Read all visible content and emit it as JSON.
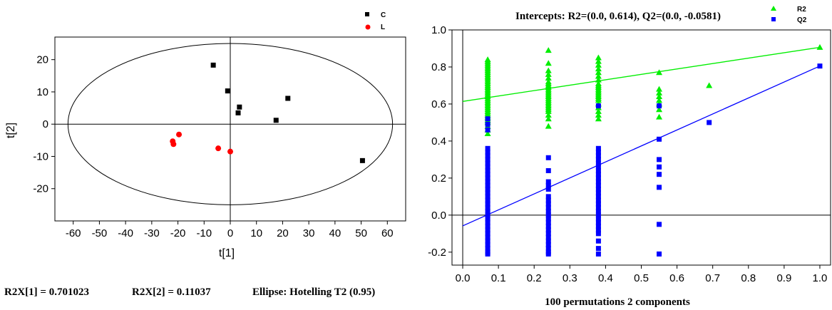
{
  "chart_data": [
    {
      "type": "scatter",
      "xlabel": "t[1]",
      "ylabel": "t[2]",
      "xlim": [
        -67,
        67
      ],
      "ylim": [
        -30,
        27
      ],
      "xticks": [
        -60,
        -50,
        -40,
        -30,
        -20,
        -10,
        0,
        10,
        20,
        30,
        40,
        50,
        60
      ],
      "yticks": [
        -20,
        -10,
        0,
        10,
        20
      ],
      "ellipse": {
        "rx": 62,
        "ry": 25
      },
      "series": [
        {
          "name": "C",
          "color": "#000000",
          "marker": "square",
          "points": [
            [
              -6.5,
              18.3
            ],
            [
              -1,
              10.3
            ],
            [
              3.5,
              5.3
            ],
            [
              3,
              3.5
            ],
            [
              17.5,
              1.2
            ],
            [
              22,
              8
            ],
            [
              50.5,
              -11.3
            ]
          ]
        },
        {
          "name": "L",
          "color": "#ff0000",
          "marker": "circle",
          "points": [
            [
              -22,
              -5.3
            ],
            [
              -21.7,
              -6.2
            ],
            [
              -19.6,
              -3.2
            ],
            [
              -4.6,
              -7.5
            ],
            [
              0,
              -8.5
            ]
          ]
        }
      ],
      "footer": {
        "r2x1": "R2X[1] = 0.701023",
        "r2x2": "R2X[2] = 0.11037",
        "ellipse": "Ellipse: Hotelling T2 (0.95)"
      }
    },
    {
      "type": "scatter",
      "title": "Intercepts: R2=(0.0, 0.614), Q2=(0.0, -0.0581)",
      "xlabel": "100 permutations 2 components",
      "xlim": [
        -0.03,
        1.03
      ],
      "ylim": [
        -0.27,
        1.0
      ],
      "xticks": [
        "0.0",
        "0.1",
        "0.2",
        "0.3",
        "0.4",
        "0.5",
        "0.6",
        "0.7",
        "0.8",
        "0.9",
        "1.0"
      ],
      "yticks": [
        "-0.2",
        "0.0",
        "0.2",
        "0.4",
        "0.6",
        "0.8",
        "1.0"
      ],
      "series": [
        {
          "name": "R2",
          "color": "#00ee00",
          "marker": "triangle",
          "columns": [
            {
              "x": 0.07,
              "y": [
                0.84,
                0.83,
                0.82,
                0.81,
                0.8,
                0.79,
                0.78,
                0.77,
                0.76,
                0.75,
                0.74,
                0.73,
                0.72,
                0.71,
                0.7,
                0.69,
                0.68,
                0.67,
                0.66,
                0.65,
                0.64,
                0.63,
                0.62,
                0.61,
                0.6,
                0.59,
                0.58,
                0.57,
                0.56,
                0.55,
                0.54,
                0.53,
                0.52,
                0.51,
                0.5,
                0.48,
                0.46,
                0.44
              ]
            },
            {
              "x": 0.24,
              "y": [
                0.89,
                0.82,
                0.78,
                0.76,
                0.74,
                0.72,
                0.71,
                0.7,
                0.69,
                0.68,
                0.67,
                0.66,
                0.65,
                0.64,
                0.63,
                0.62,
                0.61,
                0.6,
                0.59,
                0.58,
                0.57,
                0.56,
                0.54,
                0.52,
                0.48
              ]
            },
            {
              "x": 0.38,
              "y": [
                0.85,
                0.83,
                0.81,
                0.79,
                0.77,
                0.75,
                0.73,
                0.71,
                0.7,
                0.69,
                0.68,
                0.67,
                0.66,
                0.65,
                0.64,
                0.63,
                0.62,
                0.6,
                0.58,
                0.56,
                0.54,
                0.52
              ]
            },
            {
              "x": 0.55,
              "y": [
                0.77,
                0.68,
                0.66,
                0.64,
                0.62,
                0.6,
                0.57,
                0.53
              ]
            },
            {
              "x": 0.69,
              "y": [
                0.7
              ]
            },
            {
              "x": 1.0,
              "y": [
                0.906
              ]
            }
          ],
          "regression": [
            [
              0,
              0.614
            ],
            [
              1.0,
              0.906
            ]
          ]
        },
        {
          "name": "Q2",
          "color": "#0000ff",
          "marker": "square",
          "columns": [
            {
              "x": 0.07,
              "y": [
                0.52,
                0.49,
                0.46,
                0.36,
                0.34,
                0.32,
                0.3,
                0.28,
                0.26,
                0.24,
                0.22,
                0.2,
                0.18,
                0.16,
                0.14,
                0.12,
                0.1,
                0.08,
                0.06,
                0.04,
                0.02,
                0.0,
                -0.02,
                -0.04,
                -0.06,
                -0.08,
                -0.1,
                -0.12,
                -0.14,
                -0.16,
                -0.18,
                -0.2,
                -0.21
              ]
            },
            {
              "x": 0.24,
              "y": [
                0.31,
                0.24,
                0.18,
                0.16,
                0.14,
                0.1,
                0.08,
                0.06,
                0.04,
                0.02,
                0.0,
                -0.02,
                -0.04,
                -0.06,
                -0.08,
                -0.1,
                -0.12,
                -0.14,
                -0.16,
                -0.18,
                -0.2,
                -0.21
              ]
            },
            {
              "x": 0.38,
              "y": [
                0.59,
                0.36,
                0.34,
                0.32,
                0.3,
                0.28,
                0.26,
                0.24,
                0.22,
                0.2,
                0.18,
                0.16,
                0.14,
                0.12,
                0.1,
                0.08,
                0.06,
                0.04,
                0.02,
                0.0,
                -0.02,
                -0.04,
                -0.06,
                -0.08,
                -0.1,
                -0.14,
                -0.18,
                -0.21
              ]
            },
            {
              "x": 0.55,
              "y": [
                0.59,
                0.41,
                0.3,
                0.26,
                0.22,
                0.15,
                -0.05,
                -0.21
              ]
            },
            {
              "x": 0.69,
              "y": [
                0.5
              ]
            },
            {
              "x": 1.0,
              "y": [
                0.805
              ]
            }
          ],
          "regression": [
            [
              0,
              -0.0581
            ],
            [
              1.0,
              0.805
            ]
          ]
        }
      ]
    }
  ]
}
